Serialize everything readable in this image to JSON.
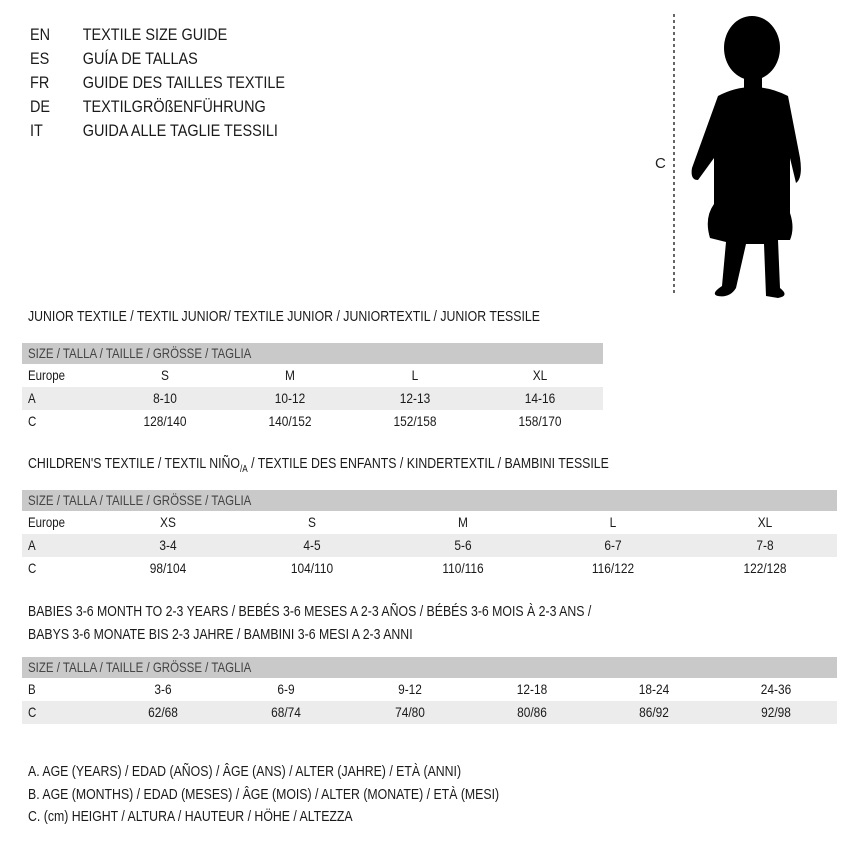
{
  "languages": [
    {
      "code": "EN",
      "title": "TEXTILE SIZE GUIDE"
    },
    {
      "code": "ES",
      "title": "GUÍA DE TALLAS"
    },
    {
      "code": "FR",
      "title": "GUIDE DES TAILLES TEXTILE"
    },
    {
      "code": "DE",
      "title": "TEXTILGRÖßENFÜHRUNG"
    },
    {
      "code": "IT",
      "title": "GUIDA ALLE TAGLIE TESSILI"
    }
  ],
  "figure": {
    "height_label": "C",
    "icon": "child-silhouette"
  },
  "colors": {
    "header_row": "#c9c9c9",
    "alt_row": "#ececec"
  },
  "junior": {
    "title": "JUNIOR TEXTILE / TEXTIL JUNIOR/ TEXTILE JUNIOR / JUNIORTEXTIL / JUNIOR TESSILE",
    "header": "SIZE / TALLA / TAILLE / GRÖSSE / TAGLIA",
    "rows": [
      {
        "label": "Europe",
        "values": [
          "S",
          "M",
          "L",
          "XL"
        ]
      },
      {
        "label": "A",
        "values": [
          "8-10",
          "10-12",
          "12-13",
          "14-16"
        ]
      },
      {
        "label": "C",
        "values": [
          "128/140",
          "140/152",
          "152/158",
          "158/170"
        ]
      }
    ]
  },
  "children": {
    "title_a": "CHILDREN'S TEXTILE / TEXTIL NIÑO",
    "title_sub": "/A",
    "title_b": " / TEXTILE DES ENFANTS / KINDERTEXTIL / BAMBINI TESSILE",
    "header": "SIZE / TALLA / TAILLE / GRÖSSE / TAGLIA",
    "rows": [
      {
        "label": "Europe",
        "values": [
          "XS",
          "S",
          "M",
          "L",
          "XL"
        ]
      },
      {
        "label": "A",
        "values": [
          "3-4",
          "4-5",
          "5-6",
          "6-7",
          "7-8"
        ]
      },
      {
        "label": "C",
        "values": [
          "98/104",
          "104/110",
          "110/116",
          "116/122",
          "122/128"
        ]
      }
    ]
  },
  "babies": {
    "title_line1": "BABIES 3-6 MONTH TO 2-3 YEARS / BEBÉS 3-6 MESES A 2-3 AÑOS / BÉBÉS 3-6 MOIS À 2-3 ANS /",
    "title_line2": "BABYS 3-6 MONATE BIS 2-3 JAHRE / BAMBINI 3-6 MESI A 2-3 ANNI",
    "header": "SIZE / TALLA / TAILLE / GRÖSSE / TAGLIA",
    "rows": [
      {
        "label": "B",
        "values": [
          "3-6",
          "6-9",
          "9-12",
          "12-18",
          "18-24",
          "24-36"
        ]
      },
      {
        "label": "C",
        "values": [
          "62/68",
          "68/74",
          "74/80",
          "80/86",
          "86/92",
          "92/98"
        ]
      }
    ]
  },
  "legend": [
    "A. AGE (YEARS) / EDAD (AÑOS) / ÂGE (ANS) / ALTER (JAHRE) / ETÀ (ANNI)",
    "B. AGE (MONTHS) / EDAD (MESES) / ÂGE (MOIS) / ALTER (MONATE) / ETÀ (MESI)",
    "C. (cm) HEIGHT / ALTURA / HAUTEUR / HÖHE / ALTEZZA"
  ]
}
